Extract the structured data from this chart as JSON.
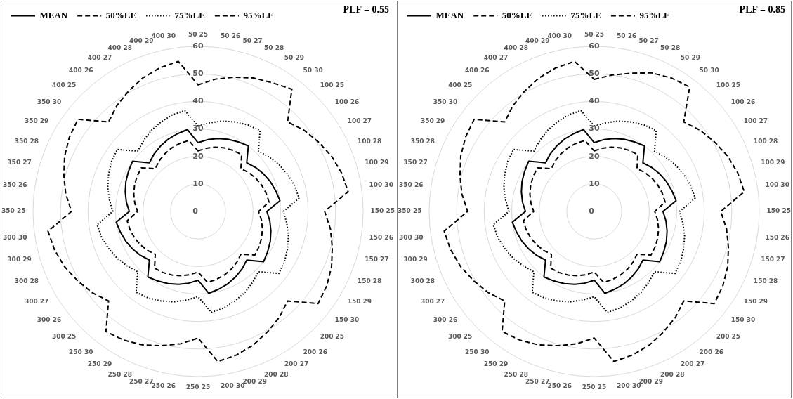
{
  "chart_data": [
    {
      "type": "radar",
      "title": "PLF = 0.55",
      "categories": [
        "50 25",
        "50 26",
        "50 27",
        "50 28",
        "50 29",
        "50 30",
        "100 25",
        "100 26",
        "100 27",
        "100 28",
        "100 29",
        "100 30",
        "150 25",
        "150 26",
        "150 27",
        "150 28",
        "150 29",
        "150 30",
        "200 25",
        "200 26",
        "200 27",
        "200 28",
        "200 29",
        "200 30",
        "250 25",
        "250 26",
        "250 27",
        "250 28",
        "250 29",
        "250 30",
        "300 25",
        "300 26",
        "300 27",
        "300 28",
        "300 29",
        "300 30",
        "350 25",
        "350 26",
        "350 27",
        "350 28",
        "350 29",
        "350 30",
        "400 25",
        "400 26",
        "400 27",
        "400 28",
        "400 29",
        "400 30"
      ],
      "series": [
        {
          "name": "MEAN",
          "color": "#000000",
          "line_style": "solid",
          "values": [
            25,
            26.3,
            27.4,
            28.4,
            29.2,
            30,
            25,
            26.3,
            27.4,
            28.4,
            29.2,
            30,
            25,
            26.3,
            27.4,
            28.4,
            29.2,
            30,
            25,
            26.3,
            27.4,
            28.4,
            29.2,
            30,
            25,
            26.3,
            27.4,
            28.4,
            29.2,
            30,
            25,
            26.3,
            27.4,
            28.4,
            29.2,
            30,
            25,
            26.3,
            27.4,
            28.4,
            29.2,
            30,
            25,
            26.3,
            27.4,
            28.4,
            29.2,
            30
          ]
        },
        {
          "name": "50%LE",
          "color": "#000000",
          "line_style": "dashed",
          "values": [
            22,
            23.2,
            24.2,
            25,
            25.6,
            26,
            22,
            23.2,
            24.2,
            25,
            25.6,
            26,
            22,
            23.2,
            24.2,
            25,
            25.6,
            26,
            22,
            23.2,
            24.2,
            25,
            25.6,
            26,
            22,
            23.2,
            24.2,
            25,
            25.6,
            26,
            22,
            23.2,
            24.2,
            25,
            25.6,
            26,
            22,
            23.2,
            24.2,
            25,
            25.6,
            26,
            22,
            23.2,
            24.2,
            25,
            25.6,
            26
          ]
        },
        {
          "name": "75%LE",
          "color": "#000000",
          "line_style": "dotted",
          "values": [
            31,
            32.5,
            34,
            35.2,
            36.3,
            37,
            31,
            32.5,
            34,
            35.2,
            36.3,
            37,
            31,
            32.5,
            34,
            35.2,
            36.3,
            37,
            31,
            32.5,
            34,
            35.2,
            36.3,
            37,
            31,
            32.5,
            34,
            35.2,
            36.3,
            37,
            31,
            32.5,
            34,
            35.2,
            36.3,
            37,
            31,
            32.5,
            34,
            35.2,
            36.3,
            37,
            31,
            32.5,
            34,
            35.2,
            36.3,
            37
          ]
        },
        {
          "name": "95%LE",
          "color": "#000000",
          "line_style": "dashed",
          "values": [
            46,
            48.5,
            50.5,
            52.5,
            54,
            56,
            46,
            48.5,
            50.5,
            52.5,
            54,
            55,
            46,
            48.5,
            50.5,
            52.5,
            54,
            55,
            46,
            48.5,
            50.5,
            52.5,
            54,
            55,
            46,
            48.5,
            50.5,
            52.5,
            54,
            55,
            46,
            48.5,
            50.5,
            52.5,
            54,
            55,
            46,
            48.5,
            50.5,
            52.5,
            54,
            55,
            46,
            48.5,
            50.5,
            52.5,
            54,
            55
          ]
        }
      ],
      "ylim": [
        0,
        60
      ],
      "yticks": [
        0,
        10,
        20,
        30,
        40,
        50,
        60
      ],
      "grid": true,
      "legend": "top left",
      "marker": "none"
    },
    {
      "type": "radar",
      "title": "PLF = 0.85",
      "categories": [
        "50 25",
        "50 26",
        "50 27",
        "50 28",
        "50 29",
        "50 30",
        "100 25",
        "100 26",
        "100 27",
        "100 28",
        "100 29",
        "100 30",
        "150 25",
        "150 26",
        "150 27",
        "150 28",
        "150 29",
        "150 30",
        "200 25",
        "200 26",
        "200 27",
        "200 28",
        "200 29",
        "200 30",
        "250 25",
        "250 26",
        "250 27",
        "250 28",
        "250 29",
        "250 30",
        "300 25",
        "300 26",
        "300 27",
        "300 28",
        "300 29",
        "300 30",
        "350 25",
        "350 26",
        "350 27",
        "350 28",
        "350 29",
        "350 30",
        "400 25",
        "400 26",
        "400 27",
        "400 28",
        "400 29",
        "400 30"
      ],
      "series": [
        {
          "name": "MEAN",
          "color": "#000000",
          "line_style": "solid",
          "values": [
            25,
            26.3,
            27.4,
            28.4,
            29.2,
            30,
            25,
            26.3,
            27.4,
            28.4,
            29.2,
            30,
            25,
            26.3,
            27.4,
            28.4,
            29.2,
            30,
            25,
            26.3,
            27.4,
            28.4,
            29.2,
            30,
            25,
            26.3,
            27.4,
            28.4,
            29.2,
            30,
            25,
            26.3,
            27.4,
            28.4,
            29.2,
            30,
            25,
            26.3,
            27.4,
            28.4,
            29.2,
            30,
            25,
            26.3,
            27.4,
            28.4,
            29.2,
            30
          ]
        },
        {
          "name": "50%LE",
          "color": "#000000",
          "line_style": "dashed",
          "values": [
            22,
            23.2,
            24.2,
            25,
            25.6,
            26,
            22,
            23.2,
            24.2,
            25,
            25.6,
            26,
            22,
            23.2,
            24.2,
            25,
            25.6,
            26,
            22,
            23.2,
            24.2,
            25,
            25.6,
            26,
            22,
            23.2,
            24.2,
            25,
            25.6,
            26,
            22,
            23.2,
            24.2,
            25,
            25.6,
            26,
            22,
            23.2,
            24.2,
            25,
            25.6,
            26,
            22,
            23.2,
            24.2,
            25,
            25.6,
            26
          ]
        },
        {
          "name": "75%LE",
          "color": "#000000",
          "line_style": "dotted",
          "values": [
            31,
            32.5,
            34,
            35.2,
            36.3,
            37,
            31,
            32.5,
            34,
            35.2,
            36.3,
            37,
            31,
            32.5,
            34,
            35.2,
            36.3,
            37,
            31,
            32.5,
            34,
            35.2,
            36.3,
            37,
            31,
            32.5,
            34,
            35.2,
            36.3,
            37,
            31,
            32.5,
            34,
            35.2,
            36.3,
            37,
            31,
            32.5,
            34,
            35.2,
            36.3,
            37,
            31,
            32.5,
            34,
            35.2,
            36.3,
            37
          ]
        },
        {
          "name": "95%LE",
          "color": "#000000",
          "line_style": "dashed",
          "values": [
            48,
            50,
            52,
            54.5,
            56,
            57,
            46,
            48.5,
            50.5,
            52.5,
            54,
            55,
            46,
            48.5,
            50.5,
            52.5,
            54,
            55,
            46,
            48.5,
            50.5,
            52.5,
            54,
            55,
            46,
            48.5,
            50.5,
            52.5,
            54,
            55,
            46,
            48.5,
            50.5,
            52.5,
            54,
            55,
            46,
            48.5,
            50.5,
            52.5,
            54,
            55,
            46,
            48.5,
            50.5,
            52.5,
            54,
            55
          ]
        }
      ],
      "ylim": [
        0,
        60
      ],
      "yticks": [
        0,
        10,
        20,
        30,
        40,
        50,
        60
      ],
      "grid": true,
      "legend": "top left",
      "marker": "none"
    }
  ]
}
